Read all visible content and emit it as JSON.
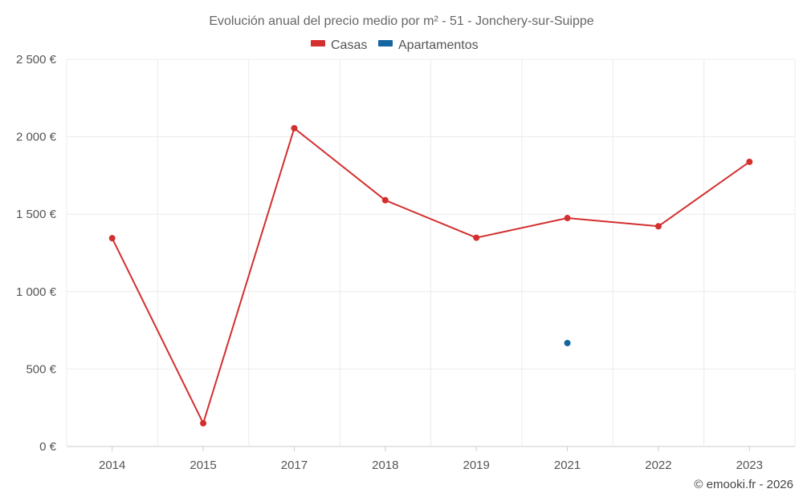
{
  "chart_data": {
    "type": "line",
    "title": "Evolución anual del precio medio por m² - 51 - Jonchery-sur-Suippe",
    "categories": [
      "2014",
      "2015",
      "2017",
      "2018",
      "2019",
      "2021",
      "2022",
      "2023"
    ],
    "series": [
      {
        "name": "Casas",
        "color": "#d32f2f",
        "values": [
          1345,
          150,
          2055,
          1590,
          1348,
          1475,
          1422,
          1838
        ]
      },
      {
        "name": "Apartamentos",
        "color": "#1565a0",
        "values": [
          null,
          null,
          null,
          null,
          null,
          668,
          null,
          null
        ]
      }
    ],
    "ylim": [
      0,
      2500
    ],
    "yticks": [
      0,
      500,
      1000,
      1500,
      2000,
      2500
    ],
    "ytick_labels": [
      "0 €",
      "500 €",
      "1 000 €",
      "1 500 €",
      "2 000 €",
      "2 500 €"
    ],
    "xlabel": "",
    "ylabel": "",
    "grid": true,
    "legend_position": "top-center"
  },
  "credit": "© emooki.fr - 2026"
}
